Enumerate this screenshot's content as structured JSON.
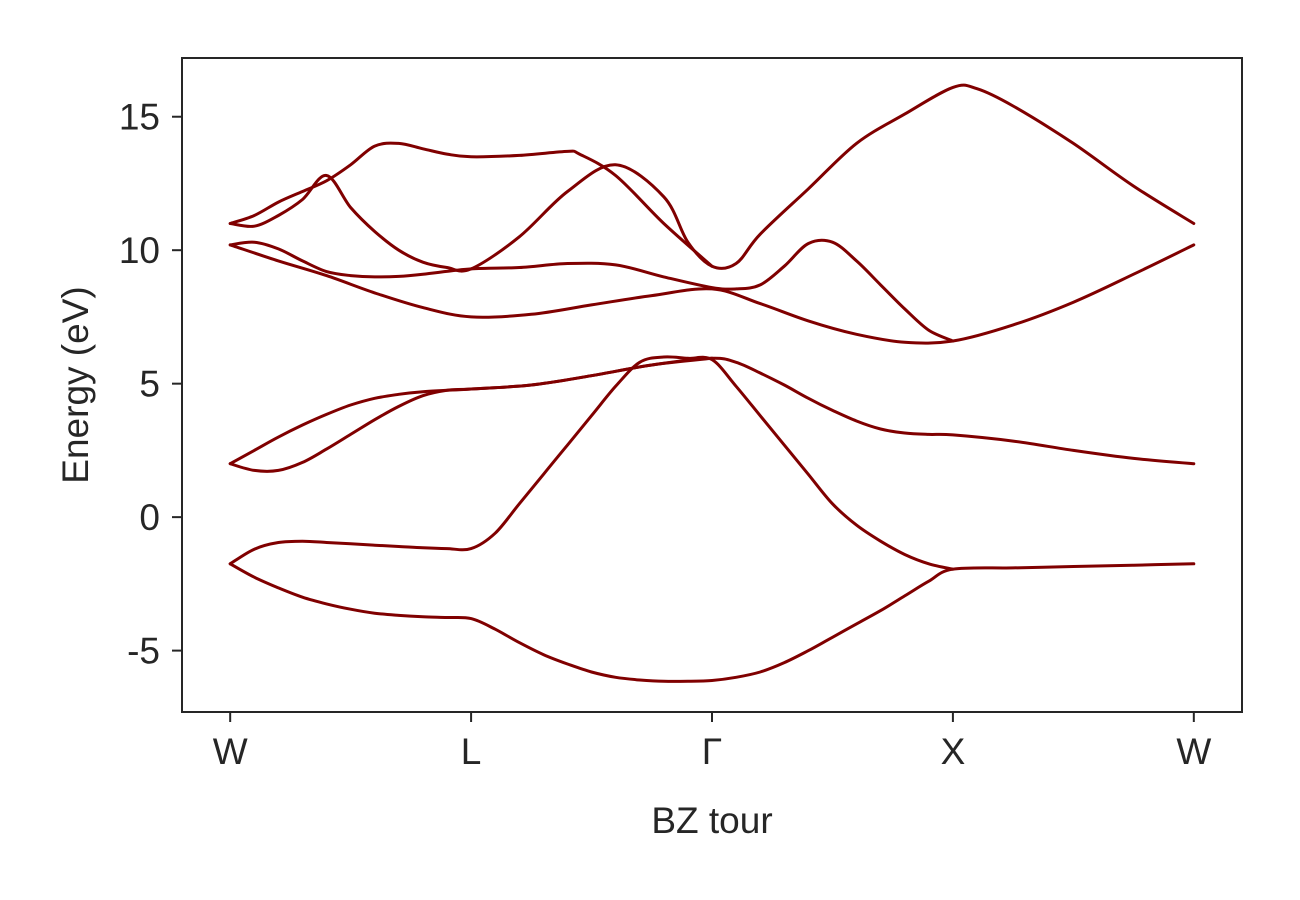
{
  "chart_data": {
    "type": "line",
    "title": "",
    "xlabel": "BZ tour",
    "ylabel": "Energy (eV)",
    "xlim": [
      -0.2,
      4.2
    ],
    "ylim": [
      -7.3,
      17.2
    ],
    "x_ticks": [
      {
        "value": 0,
        "label": "W"
      },
      {
        "value": 1,
        "label": "L"
      },
      {
        "value": 2,
        "label": "Γ"
      },
      {
        "value": 3,
        "label": "X"
      },
      {
        "value": 4,
        "label": "W"
      }
    ],
    "y_ticks": [
      {
        "value": -5,
        "label": "-5"
      },
      {
        "value": 0,
        "label": "0"
      },
      {
        "value": 5,
        "label": "5"
      },
      {
        "value": 10,
        "label": "10"
      },
      {
        "value": 15,
        "label": "15"
      }
    ],
    "grid": false,
    "legend": "none",
    "line_color": "#800000",
    "axis_color": "#262626",
    "series": [
      {
        "x": [
          0,
          0.1,
          0.2,
          0.3,
          0.4,
          0.5,
          0.6,
          0.7,
          0.8,
          0.9,
          1.0,
          1.1,
          1.2,
          1.3,
          1.4,
          1.5,
          1.6,
          1.7,
          1.8,
          1.9,
          2.0,
          2.1,
          2.2,
          2.3,
          2.4,
          2.5,
          2.6,
          2.7,
          2.8,
          2.9,
          3.0,
          3.25,
          3.5,
          3.75,
          4.0
        ],
        "y": [
          -1.75,
          -2.25,
          -2.65,
          -3.0,
          -3.25,
          -3.45,
          -3.6,
          -3.68,
          -3.73,
          -3.76,
          -3.8,
          -4.2,
          -4.7,
          -5.15,
          -5.5,
          -5.8,
          -6.0,
          -6.1,
          -6.15,
          -6.15,
          -6.12,
          -6.0,
          -5.8,
          -5.45,
          -5.0,
          -4.5,
          -4.0,
          -3.5,
          -2.95,
          -2.4,
          -1.95,
          -1.9,
          -1.85,
          -1.8,
          -1.75
        ]
      },
      {
        "x": [
          0,
          0.1,
          0.2,
          0.3,
          0.4,
          0.5,
          0.6,
          0.7,
          0.8,
          0.9,
          1.0,
          1.1,
          1.2,
          1.3,
          1.4,
          1.5,
          1.6,
          1.7,
          1.8,
          1.9,
          2.0,
          2.1,
          2.2,
          2.3,
          2.4,
          2.5,
          2.6,
          2.7,
          2.8,
          2.9,
          3.0
        ],
        "y": [
          -1.75,
          -1.2,
          -0.95,
          -0.9,
          -0.95,
          -1.0,
          -1.05,
          -1.1,
          -1.15,
          -1.18,
          -1.18,
          -0.6,
          0.5,
          1.6,
          2.7,
          3.8,
          4.9,
          5.8,
          6.0,
          5.95,
          5.9,
          4.9,
          3.8,
          2.7,
          1.6,
          0.5,
          -0.3,
          -0.9,
          -1.4,
          -1.75,
          -1.95
        ]
      },
      {
        "x": [
          0,
          0.1,
          0.2,
          0.3,
          0.4,
          0.5,
          0.6,
          0.7,
          0.8,
          0.9,
          1.0,
          1.25,
          1.5,
          1.75,
          2.0,
          2.1,
          2.2,
          2.3,
          2.4,
          2.5,
          2.6,
          2.7,
          2.8,
          2.9,
          3.0,
          3.25,
          3.5,
          3.75,
          4.0
        ],
        "y": [
          2.0,
          1.75,
          1.75,
          2.05,
          2.55,
          3.1,
          3.65,
          4.15,
          4.55,
          4.75,
          4.8,
          4.95,
          5.3,
          5.7,
          5.95,
          5.8,
          5.4,
          4.95,
          4.45,
          4.0,
          3.6,
          3.3,
          3.15,
          3.1,
          3.08,
          2.85,
          2.5,
          2.2,
          2.0
        ]
      },
      {
        "x": [
          0,
          0.1,
          0.2,
          0.3,
          0.4,
          0.5,
          0.6,
          0.7,
          0.8,
          0.9,
          1.0,
          1.25,
          1.5,
          1.75,
          2.0
        ],
        "y": [
          2.0,
          2.5,
          3.0,
          3.45,
          3.85,
          4.2,
          4.45,
          4.6,
          4.7,
          4.75,
          4.8,
          4.95,
          5.3,
          5.7,
          5.95
        ]
      },
      {
        "x": [
          0,
          0.2,
          0.4,
          0.6,
          0.8,
          1.0,
          1.25,
          1.5,
          1.75,
          2.0,
          2.2,
          2.4,
          2.6,
          2.8,
          3.0,
          3.25,
          3.5,
          3.75,
          4.0
        ],
        "y": [
          10.2,
          9.6,
          9.05,
          8.4,
          7.85,
          7.5,
          7.6,
          7.95,
          8.3,
          8.55,
          8.0,
          7.35,
          6.85,
          6.55,
          6.6,
          7.2,
          8.05,
          9.1,
          10.2
        ]
      },
      {
        "x": [
          0,
          0.1,
          0.2,
          0.3,
          0.4,
          0.5,
          0.6,
          0.7,
          0.8,
          1.0,
          1.2,
          1.4,
          1.6,
          1.8,
          2.0,
          2.1,
          2.2,
          2.3,
          2.4,
          2.5,
          2.6,
          2.7,
          2.8,
          2.9,
          3.0
        ],
        "y": [
          10.2,
          10.3,
          10.05,
          9.6,
          9.2,
          9.05,
          9.0,
          9.02,
          9.1,
          9.3,
          9.35,
          9.5,
          9.45,
          9.0,
          8.6,
          8.55,
          8.7,
          9.4,
          10.25,
          10.3,
          9.6,
          8.7,
          7.8,
          7.0,
          6.6
        ]
      },
      {
        "x": [
          0,
          0.1,
          0.2,
          0.3,
          0.4,
          0.5,
          0.6,
          0.7,
          0.8,
          0.9,
          1.0,
          1.2,
          1.4,
          1.6,
          1.8,
          1.9,
          2.0,
          2.1,
          2.2,
          2.4,
          2.6,
          2.8,
          3.0,
          3.1,
          3.25,
          3.5,
          3.75,
          4.0
        ],
        "y": [
          11.0,
          10.9,
          11.3,
          11.9,
          12.8,
          11.6,
          10.7,
          10.0,
          9.55,
          9.35,
          9.3,
          10.5,
          12.2,
          13.2,
          12.0,
          10.3,
          9.4,
          9.5,
          10.6,
          12.3,
          14.0,
          15.1,
          16.1,
          16.05,
          15.4,
          14.0,
          12.4,
          11.0
        ]
      },
      {
        "x": [
          0,
          0.1,
          0.2,
          0.3,
          0.4,
          0.5,
          0.6,
          0.7,
          0.8,
          0.9,
          1.0,
          1.2,
          1.4,
          1.45,
          1.6,
          1.8,
          2.0
        ],
        "y": [
          11.0,
          11.3,
          11.8,
          12.2,
          12.6,
          13.2,
          13.9,
          14.0,
          13.8,
          13.6,
          13.5,
          13.55,
          13.7,
          13.6,
          12.8,
          11.0,
          9.4
        ]
      }
    ]
  }
}
